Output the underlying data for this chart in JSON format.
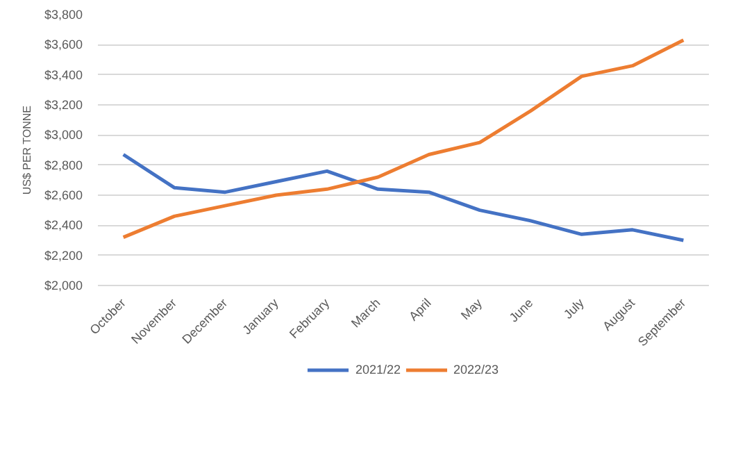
{
  "chart_data": {
    "type": "line",
    "ylabel": "US$ PER TONNE",
    "categories": [
      "October",
      "November",
      "December",
      "January",
      "February",
      "March",
      "April",
      "May",
      "June",
      "July",
      "August",
      "September"
    ],
    "series": [
      {
        "name": "2021/22",
        "color": "#4472c4",
        "values": [
          2870,
          2650,
          2620,
          2690,
          2760,
          2640,
          2620,
          2500,
          2430,
          2340,
          2370,
          2300
        ]
      },
      {
        "name": "2022/23",
        "color": "#ed7d31",
        "values": [
          2320,
          2460,
          2530,
          2600,
          2640,
          2720,
          2870,
          2950,
          3160,
          3390,
          3460,
          3630
        ]
      }
    ],
    "ylim": [
      2000,
      3800
    ],
    "yticks": [
      {
        "value": 2000,
        "label": "$2,000"
      },
      {
        "value": 2200,
        "label": "$2,200"
      },
      {
        "value": 2400,
        "label": "$2,400"
      },
      {
        "value": 2600,
        "label": "$2,600"
      },
      {
        "value": 2800,
        "label": "$2,800"
      },
      {
        "value": 3000,
        "label": "$3,000"
      },
      {
        "value": 3200,
        "label": "$3,200"
      },
      {
        "value": 3400,
        "label": "$3,400"
      },
      {
        "value": 3600,
        "label": "$3,600"
      },
      {
        "value": 3800,
        "label": "$3,800"
      }
    ],
    "grid": "y",
    "legend": "bottom",
    "marker": "none",
    "line_style": "solid"
  }
}
